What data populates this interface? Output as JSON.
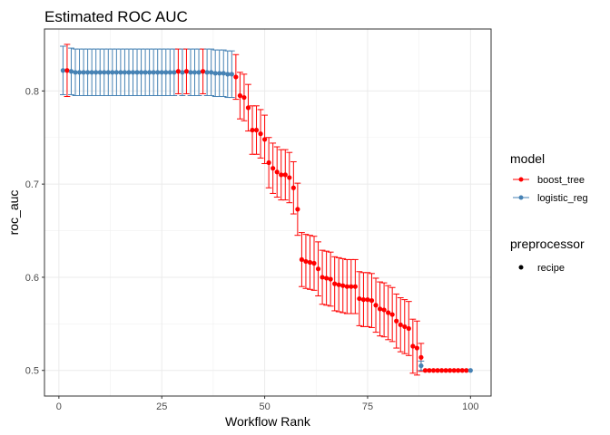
{
  "chart_data": {
    "type": "scatter",
    "title": "Estimated ROC AUC",
    "xlabel": "Workflow Rank",
    "ylabel": "roc_auc",
    "xlim": [
      -3.5,
      105
    ],
    "ylim": [
      0.4725,
      0.8665
    ],
    "x_ticks": [
      0,
      25,
      50,
      75,
      100
    ],
    "y_ticks": [
      0.5,
      0.6,
      0.7,
      0.8
    ],
    "y_tick_labels": [
      "0.5",
      "0.6",
      "0.7",
      "0.8"
    ],
    "grid": true,
    "legend": {
      "placement": "right",
      "color_title": "model",
      "shape_title": "preprocessor",
      "shape_label": "recipe"
    },
    "series": [
      {
        "name": "boost_tree",
        "color": "#ff0000",
        "points": [
          [
            2,
            0.822,
            0.028
          ],
          [
            29,
            0.821,
            0.024
          ],
          [
            31,
            0.821,
            0.024
          ],
          [
            35,
            0.821,
            0.024
          ],
          [
            43,
            0.815,
            0.024
          ],
          [
            44,
            0.795,
            0.025
          ],
          [
            45,
            0.793,
            0.025
          ],
          [
            46,
            0.782,
            0.025
          ],
          [
            47,
            0.758,
            0.026
          ],
          [
            48,
            0.758,
            0.026
          ],
          [
            49,
            0.754,
            0.026
          ],
          [
            50,
            0.748,
            0.026
          ],
          [
            51,
            0.723,
            0.027
          ],
          [
            52,
            0.717,
            0.027
          ],
          [
            53,
            0.713,
            0.027
          ],
          [
            54,
            0.71,
            0.027
          ],
          [
            55,
            0.71,
            0.027
          ],
          [
            56,
            0.707,
            0.027
          ],
          [
            57,
            0.696,
            0.028
          ],
          [
            58,
            0.673,
            0.028
          ],
          [
            59,
            0.619,
            0.029
          ],
          [
            60,
            0.617,
            0.029
          ],
          [
            61,
            0.616,
            0.029
          ],
          [
            62,
            0.615,
            0.029
          ],
          [
            63,
            0.609,
            0.029
          ],
          [
            64,
            0.6,
            0.029
          ],
          [
            65,
            0.599,
            0.029
          ],
          [
            66,
            0.598,
            0.029
          ],
          [
            67,
            0.593,
            0.029
          ],
          [
            68,
            0.592,
            0.029
          ],
          [
            69,
            0.591,
            0.029
          ],
          [
            70,
            0.59,
            0.029
          ],
          [
            71,
            0.59,
            0.029
          ],
          [
            72,
            0.59,
            0.029
          ],
          [
            73,
            0.577,
            0.029
          ],
          [
            74,
            0.576,
            0.029
          ],
          [
            75,
            0.576,
            0.029
          ],
          [
            76,
            0.575,
            0.029
          ],
          [
            77,
            0.57,
            0.029
          ],
          [
            78,
            0.566,
            0.029
          ],
          [
            79,
            0.565,
            0.029
          ],
          [
            80,
            0.562,
            0.029
          ],
          [
            81,
            0.56,
            0.029
          ],
          [
            82,
            0.553,
            0.029
          ],
          [
            83,
            0.549,
            0.029
          ],
          [
            84,
            0.547,
            0.029
          ],
          [
            85,
            0.545,
            0.029
          ],
          [
            86,
            0.526,
            0.029
          ],
          [
            87,
            0.524,
            0.029
          ],
          [
            88,
            0.514,
            0.015
          ],
          [
            89,
            0.5,
            0.0
          ],
          [
            90,
            0.5,
            0.0
          ],
          [
            91,
            0.5,
            0.0
          ],
          [
            92,
            0.5,
            0.0
          ],
          [
            93,
            0.5,
            0.0
          ],
          [
            94,
            0.5,
            0.0
          ],
          [
            95,
            0.5,
            0.0
          ],
          [
            96,
            0.5,
            0.0
          ],
          [
            97,
            0.5,
            0.0
          ],
          [
            98,
            0.5,
            0.0
          ],
          [
            99,
            0.5,
            0.0
          ]
        ]
      },
      {
        "name": "logistic_reg",
        "color": "#4682b4",
        "points": [
          [
            1,
            0.822,
            0.026
          ],
          [
            3,
            0.821,
            0.025
          ],
          [
            4,
            0.82,
            0.025
          ],
          [
            5,
            0.82,
            0.025
          ],
          [
            6,
            0.82,
            0.025
          ],
          [
            7,
            0.82,
            0.025
          ],
          [
            8,
            0.82,
            0.025
          ],
          [
            9,
            0.82,
            0.025
          ],
          [
            10,
            0.82,
            0.025
          ],
          [
            11,
            0.82,
            0.025
          ],
          [
            12,
            0.82,
            0.025
          ],
          [
            13,
            0.82,
            0.025
          ],
          [
            14,
            0.82,
            0.025
          ],
          [
            15,
            0.82,
            0.025
          ],
          [
            16,
            0.82,
            0.025
          ],
          [
            17,
            0.82,
            0.025
          ],
          [
            18,
            0.82,
            0.025
          ],
          [
            19,
            0.82,
            0.025
          ],
          [
            20,
            0.82,
            0.025
          ],
          [
            21,
            0.82,
            0.025
          ],
          [
            22,
            0.82,
            0.025
          ],
          [
            23,
            0.82,
            0.025
          ],
          [
            24,
            0.82,
            0.025
          ],
          [
            25,
            0.82,
            0.025
          ],
          [
            26,
            0.82,
            0.025
          ],
          [
            27,
            0.82,
            0.025
          ],
          [
            28,
            0.82,
            0.025
          ],
          [
            30,
            0.82,
            0.025
          ],
          [
            32,
            0.82,
            0.025
          ],
          [
            33,
            0.82,
            0.025
          ],
          [
            34,
            0.82,
            0.025
          ],
          [
            36,
            0.82,
            0.025
          ],
          [
            37,
            0.82,
            0.025
          ],
          [
            38,
            0.819,
            0.025
          ],
          [
            39,
            0.819,
            0.025
          ],
          [
            40,
            0.819,
            0.025
          ],
          [
            41,
            0.818,
            0.025
          ],
          [
            42,
            0.818,
            0.025
          ],
          [
            88,
            0.505,
            0.005
          ],
          [
            100,
            0.5,
            0.0
          ]
        ]
      }
    ]
  }
}
